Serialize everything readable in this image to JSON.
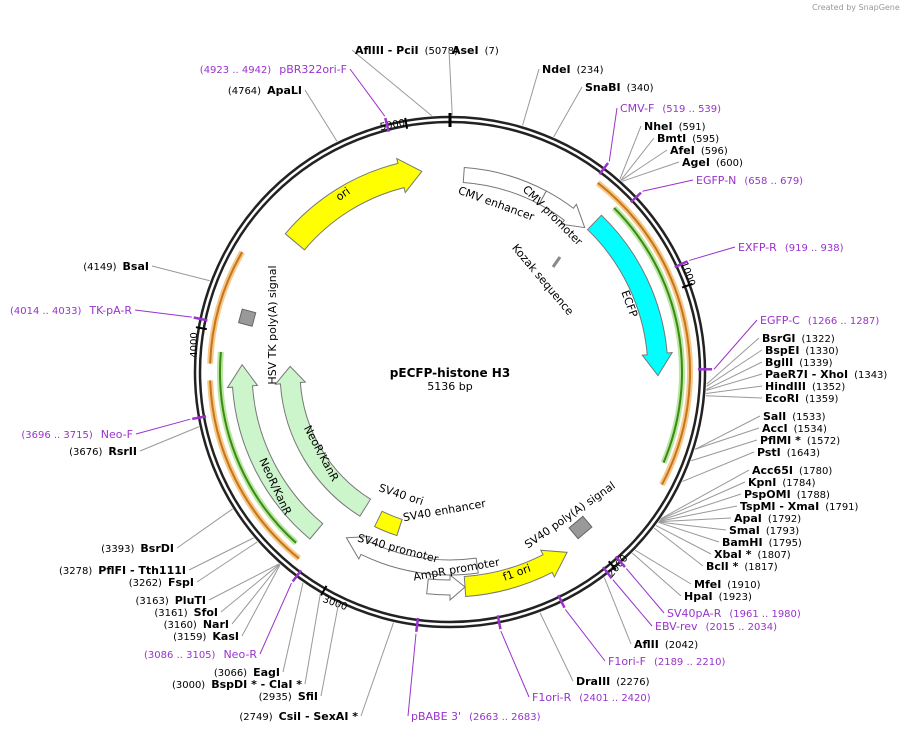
{
  "header": {
    "credit": "Created by SnapGene"
  },
  "map": {
    "name": "pECFP-histone H3",
    "size": "5136 bp",
    "ticks": [
      1000,
      2000,
      3000,
      4000,
      5000
    ],
    "features": [
      "ori",
      "CMV enhancer",
      "CMV promoter",
      "Kozak sequence",
      "ECFP",
      "SV40 poly(A) signal",
      "f1 ori",
      "AmpR promoter",
      "SV40 promoter",
      "SV40 ori",
      "SV40 enhancer",
      "NeoR/KanR",
      "NeoR/KanR",
      "HSV TK poly(A) signal"
    ],
    "sites": [
      {
        "name": "AflIII - PciI",
        "pos": "(5078)"
      },
      {
        "name": "AseI",
        "pos": "(7)"
      },
      {
        "name": "NdeI",
        "pos": "(234)"
      },
      {
        "name": "SnaBI",
        "pos": "(340)"
      },
      {
        "name": "NheI",
        "pos": "(591)"
      },
      {
        "name": "BmtI",
        "pos": "(595)"
      },
      {
        "name": "AfeI",
        "pos": "(596)"
      },
      {
        "name": "AgeI",
        "pos": "(600)"
      },
      {
        "name": "BsrGI",
        "pos": "(1322)"
      },
      {
        "name": "BspEI",
        "pos": "(1330)"
      },
      {
        "name": "BglII",
        "pos": "(1339)"
      },
      {
        "name": "PaeR7I - XhoI",
        "pos": "(1343)"
      },
      {
        "name": "HindIII",
        "pos": "(1352)"
      },
      {
        "name": "EcoRI",
        "pos": "(1359)"
      },
      {
        "name": "SalI",
        "pos": "(1533)"
      },
      {
        "name": "AccI",
        "pos": "(1534)"
      },
      {
        "name": "PflMI *",
        "pos": "(1572)"
      },
      {
        "name": "PstI",
        "pos": "(1643)"
      },
      {
        "name": "Acc65I",
        "pos": "(1780)"
      },
      {
        "name": "KpnI",
        "pos": "(1784)"
      },
      {
        "name": "PspOMI",
        "pos": "(1788)"
      },
      {
        "name": "TspMI - XmaI",
        "pos": "(1791)"
      },
      {
        "name": "ApaI",
        "pos": "(1792)"
      },
      {
        "name": "SmaI",
        "pos": "(1793)"
      },
      {
        "name": "BamHI",
        "pos": "(1795)"
      },
      {
        "name": "XbaI *",
        "pos": "(1807)"
      },
      {
        "name": "BclI *",
        "pos": "(1817)"
      },
      {
        "name": "MfeI",
        "pos": "(1910)"
      },
      {
        "name": "HpaI",
        "pos": "(1923)"
      },
      {
        "name": "AflII",
        "pos": "(2042)"
      },
      {
        "name": "DraIII",
        "pos": "(2276)"
      },
      {
        "name": "ApaLI",
        "pos": "(4764)"
      },
      {
        "name": "BsaI",
        "pos": "(4149)"
      },
      {
        "name": "RsrII",
        "pos": "(3676)"
      },
      {
        "name": "BsrDI",
        "pos": "(3393)"
      },
      {
        "name": "PflFI - Tth111I",
        "pos": "(3278)"
      },
      {
        "name": "FspI",
        "pos": "(3262)"
      },
      {
        "name": "PluTI",
        "pos": "(3163)"
      },
      {
        "name": "SfoI",
        "pos": "(3161)"
      },
      {
        "name": "NarI",
        "pos": "(3160)"
      },
      {
        "name": "KasI",
        "pos": "(3159)"
      },
      {
        "name": "EagI",
        "pos": "(3066)"
      },
      {
        "name": "BspDI * - ClaI *",
        "pos": "(3000)"
      },
      {
        "name": "SfiI",
        "pos": "(2935)"
      },
      {
        "name": "CsiI - SexAI *",
        "pos": "(2749)"
      }
    ],
    "primers": [
      {
        "name": "pBR322ori-F",
        "range": "(4923 .. 4942)"
      },
      {
        "name": "CMV-F",
        "range": "(519 .. 539)"
      },
      {
        "name": "EGFP-N",
        "range": "(658 .. 679)"
      },
      {
        "name": "EXFP-R",
        "range": "(919 .. 938)"
      },
      {
        "name": "EGFP-C",
        "range": "(1266 .. 1287)"
      },
      {
        "name": "TK-pA-R",
        "range": "(4014 .. 4033)"
      },
      {
        "name": "Neo-F",
        "range": "(3696 .. 3715)"
      },
      {
        "name": "SV40pA-R",
        "range": "(1961 .. 1980)"
      },
      {
        "name": "EBV-rev",
        "range": "(2015 .. 2034)"
      },
      {
        "name": "F1ori-F",
        "range": "(2189 .. 2210)"
      },
      {
        "name": "F1ori-R",
        "range": "(2401 .. 2420)"
      },
      {
        "name": "pBABE 3'",
        "range": "(2663 .. 2683)"
      },
      {
        "name": "Neo-R",
        "range": "(3086 .. 3105)"
      }
    ]
  }
}
